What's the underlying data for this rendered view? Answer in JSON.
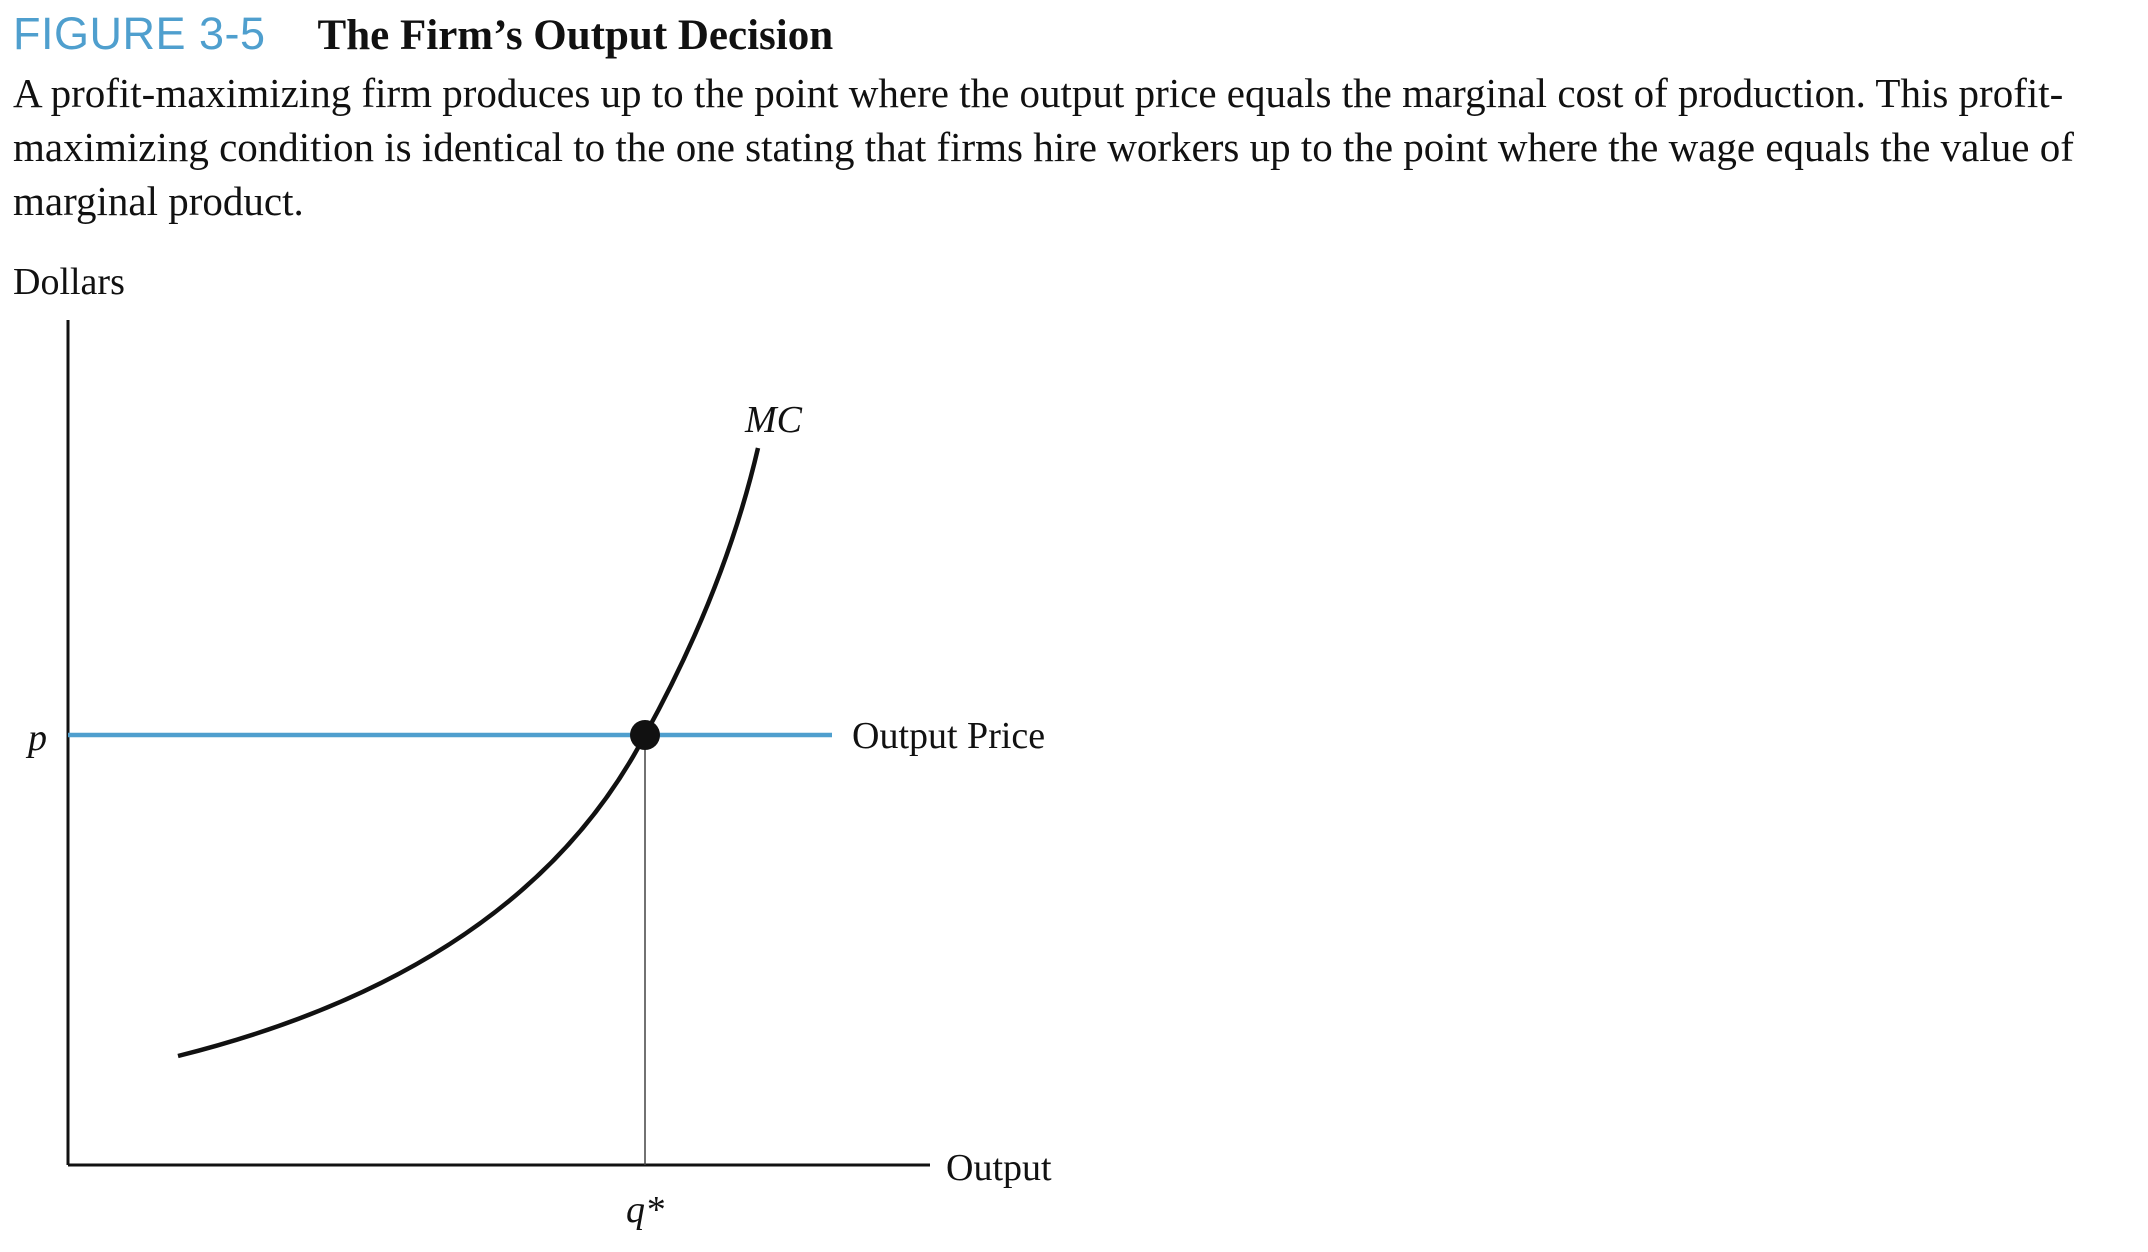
{
  "figure": {
    "number": "FIGURE 3-5",
    "title": "The Firm’s Output Decision",
    "caption": "A profit-maximizing firm produces up to the point where the output price equals the marginal cost of production. This profit-maximizing condition is identical to the one stating that firms hire workers up to the point where the wage equals the value of marginal product."
  },
  "diagram": {
    "y_axis_label": "Dollars",
    "x_axis_label": "Output",
    "price_tick_label": "p",
    "quantity_tick_label": "q*",
    "mc_curve_label": "MC",
    "price_line_label": "Output Price"
  },
  "colors": {
    "accent": "#4f9fce",
    "price_line": "#4f9fce",
    "curve": "#111111",
    "axis": "#111111"
  }
}
